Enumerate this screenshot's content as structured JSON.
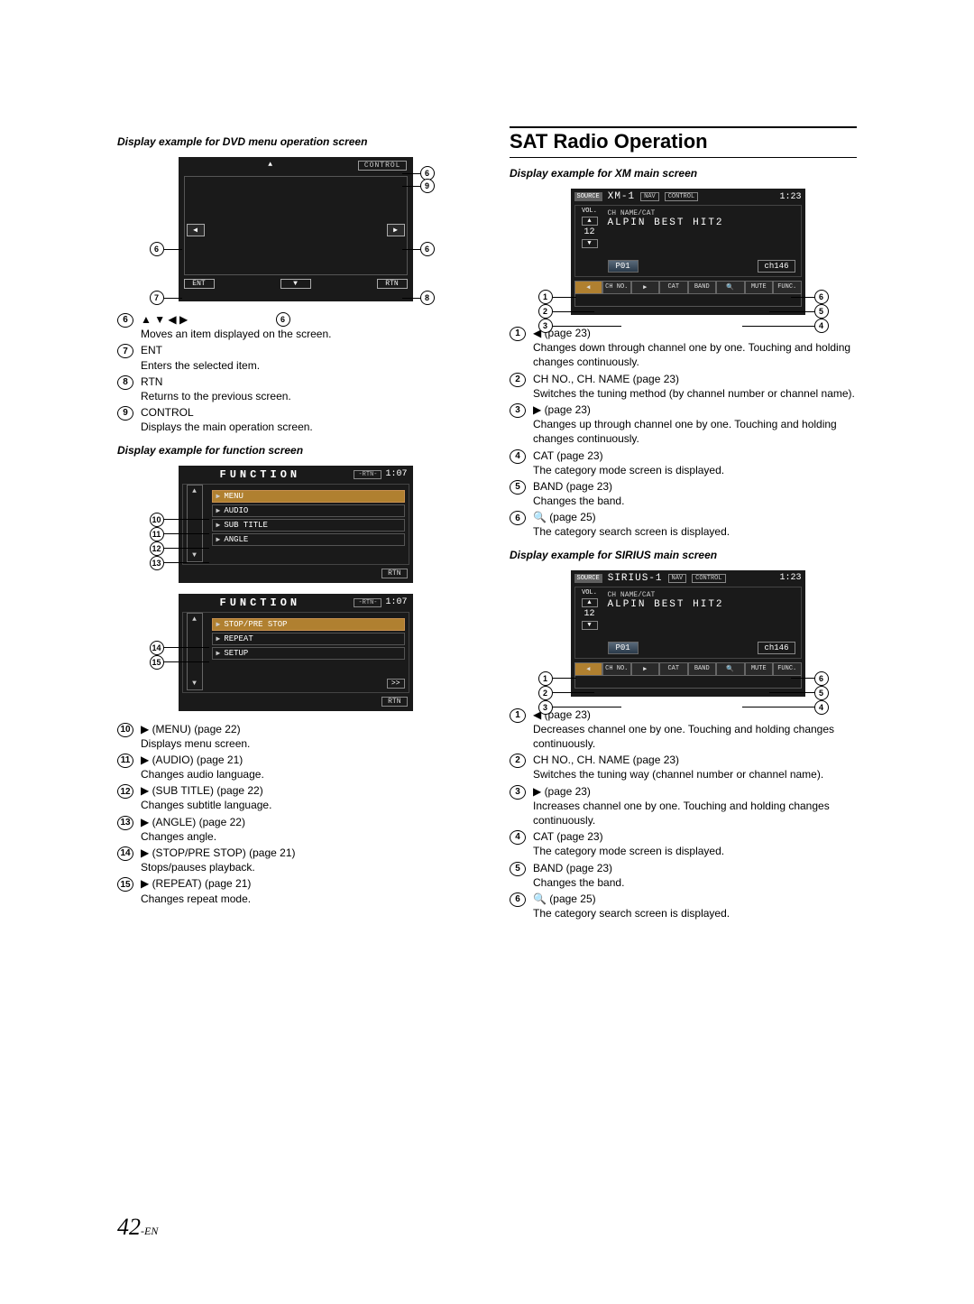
{
  "page_number": "42",
  "page_suffix": "-EN",
  "left": {
    "caption_dvd": "Display example for DVD menu operation screen",
    "dvd_control_label": "CONTROL",
    "dvd_ent": "ENT",
    "dvd_rtn": "RTN",
    "dvd_items": [
      {
        "n": "6",
        "head": "▲ ▼ ◀ ▶",
        "desc": "Moves an item displayed on the screen."
      },
      {
        "n": "7",
        "head": "ENT",
        "desc": "Enters the selected item."
      },
      {
        "n": "8",
        "head": "RTN",
        "desc": "Returns to the previous screen."
      },
      {
        "n": "9",
        "head": "CONTROL",
        "desc": "Displays the main operation screen."
      }
    ],
    "caption_func": "Display example for function screen",
    "func_title": "FUNCTION",
    "func_pill": "-RTN-",
    "func_time": "1:07",
    "func_rtn": "RTN",
    "func_more": ">>",
    "func1_rows": [
      {
        "label": "MENU",
        "hl": true
      },
      {
        "label": "AUDIO",
        "hl": false
      },
      {
        "label": "SUB TITLE",
        "hl": false
      },
      {
        "label": "ANGLE",
        "hl": false
      }
    ],
    "func2_rows": [
      {
        "label": "STOP/PRE STOP",
        "hl": true
      },
      {
        "label": "REPEAT",
        "hl": false
      },
      {
        "label": "SETUP",
        "hl": false
      }
    ],
    "func_items": [
      {
        "n": "10",
        "head": "▶  (MENU) (page 22)",
        "desc": "Displays menu screen."
      },
      {
        "n": "11",
        "head": "▶  (AUDIO) (page 21)",
        "desc": "Changes audio language."
      },
      {
        "n": "12",
        "head": "▶  (SUB TITLE) (page 22)",
        "desc": "Changes subtitle language."
      },
      {
        "n": "13",
        "head": "▶  (ANGLE) (page 22)",
        "desc": "Changes angle."
      },
      {
        "n": "14",
        "head": "▶  (STOP/PRE STOP) (page 21)",
        "desc": "Stops/pauses playback."
      },
      {
        "n": "15",
        "head": "▶  (REPEAT) (page 21)",
        "desc": "Changes repeat mode."
      }
    ]
  },
  "right": {
    "section": "SAT Radio Operation",
    "caption_xm": "Display example for XM main screen",
    "caption_sirius": "Display example for SIRIUS main screen",
    "source_label": "SOURCE",
    "nav_label": "NAV",
    "control_label": "CONTROL",
    "xm_source": "XM-1",
    "sirius_source": "SIRIUS-1",
    "time": "1:23",
    "vol_label": "VOL.",
    "vol_value": "12",
    "info_small": "CH NAME/CAT",
    "info_big": "ALPIN BEST HIT2",
    "preset": "P01",
    "ch": "ch146",
    "bot_buttons": [
      "◀",
      "CH NO.",
      "▶",
      "CAT",
      "BAND",
      "🔍",
      "MUTE",
      "FUNC."
    ],
    "xm_items": [
      {
        "n": "1",
        "head": "◀  (page 23)",
        "desc": "Changes down through channel one by one. Touching and holding changes continuously."
      },
      {
        "n": "2",
        "head": "CH NO., CH. NAME (page 23)",
        "desc": "Switches the tuning method (by channel number or channel name)."
      },
      {
        "n": "3",
        "head": "▶  (page 23)",
        "desc": "Changes up through channel one by one. Touching and holding changes continuously."
      },
      {
        "n": "4",
        "head": "CAT (page 23)",
        "desc": "The category mode screen is displayed."
      },
      {
        "n": "5",
        "head": "BAND (page 23)",
        "desc": "Changes the band."
      },
      {
        "n": "6",
        "head": "🔍  (page 25)",
        "desc": "The category search screen is displayed."
      }
    ],
    "sirius_items": [
      {
        "n": "1",
        "head": "◀  (page 23)",
        "desc": "Decreases channel one by one.  Touching and holding changes continuously."
      },
      {
        "n": "2",
        "head": "CH NO., CH. NAME (page 23)",
        "desc": "Switches the tuning way (channel number or channel name)."
      },
      {
        "n": "3",
        "head": "▶  (page 23)",
        "desc": "Increases channel one by one. Touching and holding changes continuously."
      },
      {
        "n": "4",
        "head": "CAT (page 23)",
        "desc": "The category mode screen is displayed."
      },
      {
        "n": "5",
        "head": "BAND (page 23)",
        "desc": "Changes the band."
      },
      {
        "n": "6",
        "head": "🔍  (page 25)",
        "desc": "The category search screen is displayed."
      }
    ]
  }
}
